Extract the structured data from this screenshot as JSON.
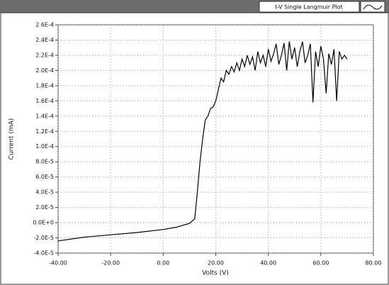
{
  "chart_data": {
    "type": "line",
    "xlabel": "Volts (V)",
    "ylabel": "Current (mA)",
    "grid": true,
    "legend": "top-right",
    "xlim": [
      -40,
      80
    ],
    "ylim": [
      -4e-05,
      0.00026
    ],
    "xticks": [
      {
        "value": -40,
        "label": "-40.00"
      },
      {
        "value": -20,
        "label": "-20.00"
      },
      {
        "value": 0,
        "label": "0.00"
      },
      {
        "value": 20,
        "label": "20.00"
      },
      {
        "value": 40,
        "label": "40.00"
      },
      {
        "value": 60,
        "label": "60.00"
      },
      {
        "value": 80,
        "label": "80.00"
      }
    ],
    "yticks": [
      {
        "value": -4e-05,
        "label": "-4.0E-5"
      },
      {
        "value": -2e-05,
        "label": "-2.0E-5"
      },
      {
        "value": 0,
        "label": "0.0E+0"
      },
      {
        "value": 2e-05,
        "label": "2.0E-5"
      },
      {
        "value": 4e-05,
        "label": "4.0E-5"
      },
      {
        "value": 6e-05,
        "label": "6.0E-5"
      },
      {
        "value": 8e-05,
        "label": "8.0E-5"
      },
      {
        "value": 0.0001,
        "label": "1.0E-4"
      },
      {
        "value": 0.00012,
        "label": "1.2E-4"
      },
      {
        "value": 0.00014,
        "label": "1.4E-4"
      },
      {
        "value": 0.00016,
        "label": "1.6E-4"
      },
      {
        "value": 0.00018,
        "label": "1.8E-4"
      },
      {
        "value": 0.0002,
        "label": "2.0E-4"
      },
      {
        "value": 0.00022,
        "label": "2.2E-4"
      },
      {
        "value": 0.00024,
        "label": "2.4E-4"
      },
      {
        "value": 0.00026,
        "label": "2.6E-4"
      }
    ],
    "x": [
      -40,
      -30,
      -20,
      -10,
      0,
      5,
      10,
      12,
      13,
      14,
      15,
      16,
      17,
      18,
      19,
      20,
      21,
      22,
      23,
      24,
      25,
      26,
      27,
      28,
      29,
      30,
      31,
      32,
      33,
      34,
      35,
      36,
      37,
      38,
      39,
      40,
      41,
      42,
      43,
      44,
      45,
      46,
      47,
      48,
      49,
      50,
      51,
      52,
      53,
      54,
      55,
      56,
      57,
      58,
      59,
      60,
      61,
      62,
      63,
      64,
      65,
      66,
      67,
      68,
      69,
      70
    ],
    "series": [
      {
        "name": "I-V Single Langmuir Plot",
        "color": "#000000",
        "values": [
          -2.4e-05,
          -1.9e-05,
          -1.6e-05,
          -1.3e-05,
          -9e-06,
          -6e-06,
          -1e-06,
          5e-06,
          4e-05,
          8e-05,
          0.00011,
          0.000135,
          0.00014,
          0.00015,
          0.000152,
          0.00016,
          0.000175,
          0.00019,
          0.000185,
          0.0002,
          0.000195,
          0.000205,
          0.000198,
          0.00021,
          0.0002,
          0.000215,
          0.000205,
          0.00022,
          0.000208,
          0.000218,
          0.0002,
          0.000225,
          0.00021,
          0.00022,
          0.000205,
          0.000228,
          0.000212,
          0.000222,
          0.000235,
          0.000208,
          0.00022,
          0.000236,
          0.0002,
          0.000238,
          0.000215,
          0.00023,
          0.000205,
          0.000225,
          0.000238,
          0.00021,
          0.00022,
          0.000235,
          0.000158,
          0.000225,
          0.000205,
          0.000232,
          0.000215,
          0.00017,
          0.000222,
          0.000208,
          0.000228,
          0.00016,
          0.000225,
          0.000215,
          0.00022,
          0.000215
        ]
      }
    ]
  }
}
